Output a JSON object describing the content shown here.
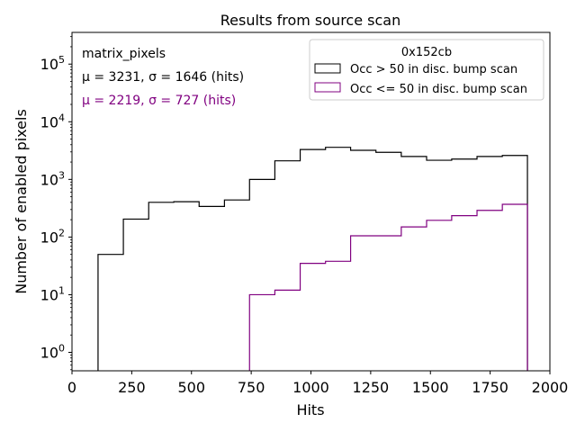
{
  "chart_data": {
    "type": "histogram",
    "title": "Results from source scan",
    "xlabel": "Hits",
    "ylabel": "Number of enabled pixels",
    "xlim": [
      0,
      2000
    ],
    "ylim_log10": [
      -0.32,
      5.55
    ],
    "yscale": "log",
    "x_ticks": [
      0,
      250,
      500,
      750,
      1000,
      1250,
      1500,
      1750,
      2000
    ],
    "x_tick_labels": [
      "0",
      "250",
      "500",
      "750",
      "1000",
      "1250",
      "1500",
      "1750",
      "2000"
    ],
    "y_ticks": [
      1,
      10,
      100,
      1000,
      10000,
      100000
    ],
    "y_tick_labels": [
      {
        "base": "10",
        "exp": "0"
      },
      {
        "base": "10",
        "exp": "1"
      },
      {
        "base": "10",
        "exp": "2"
      },
      {
        "base": "10",
        "exp": "3"
      },
      {
        "base": "10",
        "exp": "4"
      },
      {
        "base": "10",
        "exp": "5"
      }
    ],
    "annotations": [
      {
        "text": "matrix_pixels",
        "color": "#000000"
      },
      {
        "text": "μ = 3231, σ = 1646 (hits)",
        "color": "#000000"
      },
      {
        "text": "μ = 2219, σ = 727 (hits)",
        "color": "#800080"
      }
    ],
    "legend": {
      "title": "0x152cb",
      "position": "top-right"
    },
    "series": [
      {
        "name": "Occ > 50 in disc. bump scan",
        "color": "#000000",
        "bin_edges": [
          109,
          215,
          321,
          426,
          532,
          638,
          743,
          849,
          955,
          1061,
          1166,
          1272,
          1378,
          1484,
          1589,
          1695,
          1801,
          1906
        ],
        "counts": [
          50,
          205,
          400,
          410,
          340,
          440,
          1000,
          2100,
          3300,
          3600,
          3200,
          2950,
          2500,
          2150,
          2250,
          2500,
          2600
        ]
      },
      {
        "name": "Occ <= 50 in disc. bump scan",
        "color": "#800080",
        "bin_edges": [
          743,
          849,
          955,
          1061,
          1166,
          1272,
          1378,
          1484,
          1589,
          1695,
          1801,
          1906
        ],
        "counts": [
          10,
          12,
          35,
          38,
          105,
          105,
          150,
          195,
          235,
          290,
          370
        ]
      }
    ]
  }
}
